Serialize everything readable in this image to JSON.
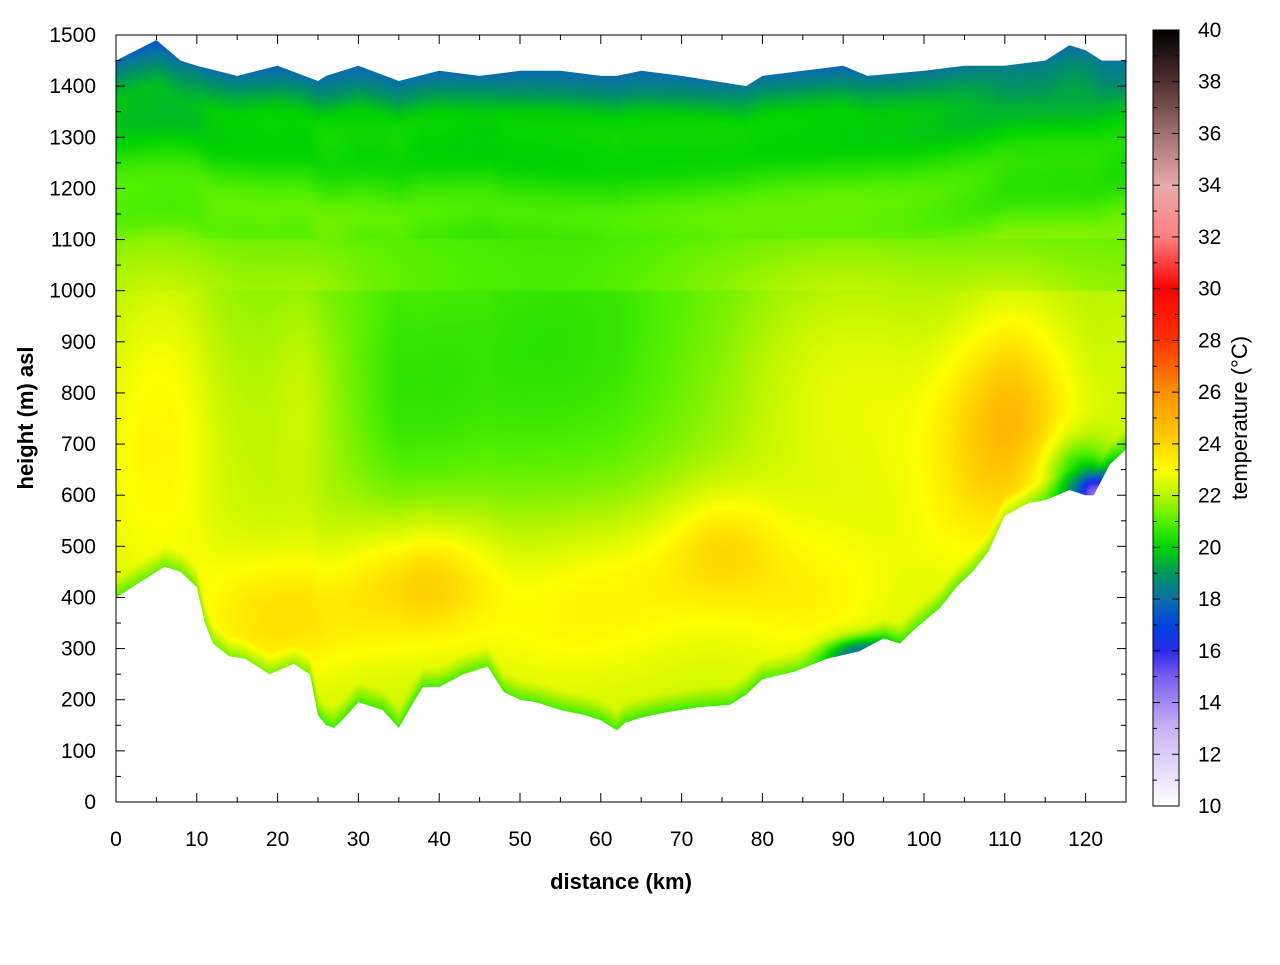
{
  "chart_data": {
    "type": "heatmap",
    "title": "",
    "xlabel": "distance (km)",
    "ylabel": "height (m) asl",
    "xlim": [
      0,
      125
    ],
    "ylim": [
      0,
      1500
    ],
    "x_ticks": [
      0,
      10,
      20,
      30,
      40,
      50,
      60,
      70,
      80,
      90,
      100,
      110,
      120
    ],
    "y_ticks": [
      0,
      100,
      200,
      300,
      400,
      500,
      600,
      700,
      800,
      900,
      1000,
      1100,
      1200,
      1300,
      1400,
      1500
    ],
    "grid": true,
    "colorbar": {
      "label": "temperature (°C)",
      "range": [
        10,
        40
      ],
      "ticks": [
        10,
        12,
        14,
        16,
        18,
        20,
        22,
        24,
        26,
        28,
        30,
        32,
        34,
        36,
        38,
        40
      ],
      "palette": [
        {
          "v": 10,
          "color": "#ffffff"
        },
        {
          "v": 13,
          "color": "#c9b3f5"
        },
        {
          "v": 15,
          "color": "#7a5cf0"
        },
        {
          "v": 16,
          "color": "#2a2ae8"
        },
        {
          "v": 17,
          "color": "#0044dd"
        },
        {
          "v": 18,
          "color": "#0a70a8"
        },
        {
          "v": 19,
          "color": "#00985a"
        },
        {
          "v": 20,
          "color": "#00d400"
        },
        {
          "v": 21,
          "color": "#55f000"
        },
        {
          "v": 22,
          "color": "#b8f500"
        },
        {
          "v": 23,
          "color": "#ffff00"
        },
        {
          "v": 24,
          "color": "#ffd400"
        },
        {
          "v": 26,
          "color": "#ff9000"
        },
        {
          "v": 28,
          "color": "#ff3300"
        },
        {
          "v": 30,
          "color": "#ff0000"
        },
        {
          "v": 32,
          "color": "#ff8080"
        },
        {
          "v": 34,
          "color": "#e8aaaa"
        },
        {
          "v": 36,
          "color": "#a07070"
        },
        {
          "v": 38,
          "color": "#503030"
        },
        {
          "v": 40,
          "color": "#000000"
        }
      ]
    },
    "ground_profile": {
      "x": [
        0,
        3,
        6,
        8,
        10,
        11,
        12,
        14,
        16,
        19,
        22,
        24,
        25,
        26,
        27,
        28,
        30,
        33,
        35,
        37,
        38,
        40,
        43,
        46,
        48,
        50,
        52,
        55,
        58,
        60,
        62,
        63,
        65,
        68,
        72,
        76,
        78,
        80,
        84,
        88,
        92,
        95,
        97,
        99,
        102,
        104,
        106,
        108,
        110,
        113,
        115,
        118,
        120,
        121,
        122,
        123,
        125
      ],
      "y": [
        400,
        430,
        460,
        450,
        420,
        350,
        310,
        285,
        280,
        250,
        270,
        250,
        170,
        150,
        145,
        160,
        195,
        180,
        145,
        200,
        225,
        225,
        250,
        265,
        215,
        200,
        195,
        180,
        170,
        160,
        140,
        155,
        165,
        175,
        185,
        190,
        210,
        240,
        255,
        280,
        295,
        320,
        310,
        340,
        380,
        420,
        450,
        490,
        560,
        585,
        590,
        610,
        600,
        600,
        630,
        660,
        690
      ]
    },
    "top_profile": {
      "x": [
        0,
        5,
        8,
        10,
        15,
        20,
        25,
        26,
        30,
        35,
        40,
        45,
        50,
        55,
        60,
        62,
        65,
        70,
        78,
        80,
        90,
        93,
        100,
        105,
        110,
        115,
        118,
        120,
        122,
        125
      ],
      "y": [
        1450,
        1490,
        1450,
        1440,
        1420,
        1440,
        1410,
        1420,
        1440,
        1410,
        1430,
        1420,
        1430,
        1430,
        1420,
        1420,
        1430,
        1420,
        1400,
        1420,
        1440,
        1420,
        1430,
        1440,
        1440,
        1450,
        1480,
        1470,
        1450,
        1450
      ]
    },
    "temperature_features": [
      {
        "x": 5,
        "y": 760,
        "value": 23.2,
        "sx": 6,
        "sy": 220
      },
      {
        "x": 20,
        "y": 360,
        "value": 23.5,
        "sx": 7,
        "sy": 90
      },
      {
        "x": 34,
        "y": 420,
        "value": 23.2,
        "sx": 6,
        "sy": 90
      },
      {
        "x": 40,
        "y": 440,
        "value": 23.3,
        "sx": 5,
        "sy": 80
      },
      {
        "x": 54,
        "y": 380,
        "value": 22.9,
        "sx": 8,
        "sy": 110
      },
      {
        "x": 65,
        "y": 430,
        "value": 22.9,
        "sx": 7,
        "sy": 100
      },
      {
        "x": 75,
        "y": 500,
        "value": 23.6,
        "sx": 5,
        "sy": 80
      },
      {
        "x": 86,
        "y": 400,
        "value": 23.0,
        "sx": 7,
        "sy": 110
      },
      {
        "x": 90,
        "y": 820,
        "value": 23.0,
        "sx": 9,
        "sy": 170
      },
      {
        "x": 111,
        "y": 760,
        "value": 24.3,
        "sx": 5,
        "sy": 140
      },
      {
        "x": 105,
        "y": 650,
        "value": 22.9,
        "sx": 6,
        "sy": 160
      },
      {
        "x": 24,
        "y": 800,
        "value": 22.8,
        "sx": 4,
        "sy": 150
      },
      {
        "x": 55,
        "y": 830,
        "value": 20.9,
        "sx": 12,
        "sy": 220
      },
      {
        "x": 36,
        "y": 760,
        "value": 21.1,
        "sx": 8,
        "sy": 180
      },
      {
        "x": 92,
        "y": 290,
        "value": 18.5,
        "sx": 3,
        "sy": 25
      },
      {
        "x": 121,
        "y": 605,
        "value": 16.8,
        "sx": 1.3,
        "sy": 28
      },
      {
        "x": 119,
        "y": 640,
        "value": 19.2,
        "sx": 3,
        "sy": 50
      }
    ]
  }
}
